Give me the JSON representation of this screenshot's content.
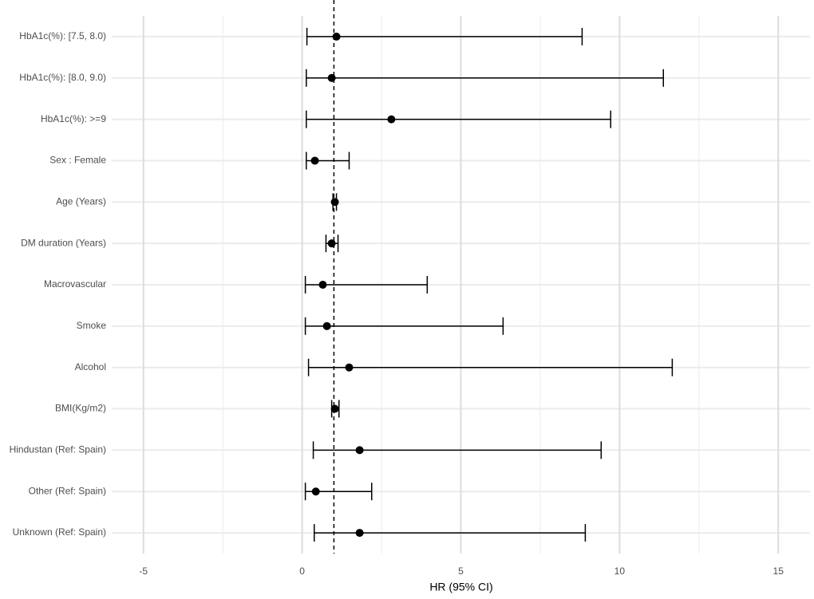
{
  "chart_data": {
    "type": "forest",
    "x_label": "HR (95% CI)",
    "categories": [
      "HbA1c(%): [7.5, 8.0)",
      "HbA1c(%): [8.0, 9.0)",
      "HbA1c(%): >=9",
      "Sex : Female",
      "Age (Years)",
      "DM duration (Years)",
      "Macrovascular",
      "Smoke",
      "Alcohol",
      "BMI(Kg/m2)",
      "Hindustan (Ref: Spain)",
      "Other (Ref: Spain)",
      "Unknown (Ref: Spain)"
    ],
    "estimates": [
      1.08,
      0.93,
      2.81,
      0.4,
      1.03,
      0.93,
      0.65,
      0.78,
      1.48,
      1.03,
      1.81,
      0.43,
      1.81
    ],
    "lower": [
      0.15,
      0.13,
      0.13,
      0.13,
      0.97,
      0.75,
      0.1,
      0.1,
      0.2,
      0.93,
      0.35,
      0.1,
      0.38
    ],
    "upper": [
      8.82,
      11.38,
      9.72,
      1.48,
      1.08,
      1.13,
      3.94,
      6.33,
      11.66,
      1.16,
      9.42,
      2.19,
      8.92
    ],
    "color": "#000000",
    "reference_line": 1,
    "xlim": [
      -6,
      16
    ],
    "xticks": [
      -5,
      0,
      5,
      10,
      15
    ],
    "grid": true
  }
}
